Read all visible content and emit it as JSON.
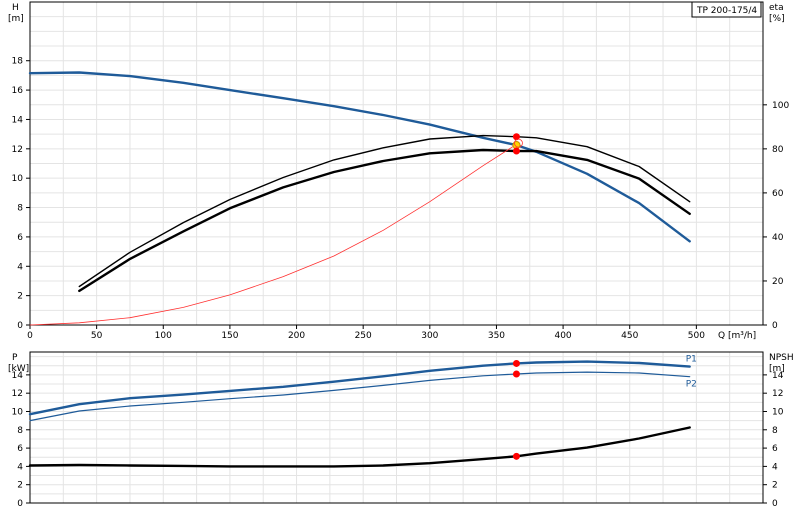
{
  "title": "TP 200-175/4",
  "chart_data": [
    {
      "type": "line",
      "name": "head-and-efficiency",
      "x_label": "Q [m³/h]",
      "xlim": [
        0,
        550
      ],
      "x_ticks": [
        0,
        50,
        100,
        150,
        200,
        250,
        300,
        350,
        400,
        450,
        500
      ],
      "y_left": {
        "label_top": "H",
        "label_unit": "[m]",
        "lim": [
          0,
          22
        ],
        "ticks": [
          0,
          2,
          4,
          6,
          8,
          10,
          12,
          14,
          16,
          18
        ]
      },
      "y_right": {
        "label_top": "eta",
        "label_unit": "[%]",
        "lim": [
          0,
          146.7
        ],
        "ticks": [
          0,
          20,
          40,
          60,
          80,
          100
        ]
      },
      "grid": true,
      "series": [
        {
          "axis": "left",
          "color": "#1f5b99",
          "width": 2.4,
          "x": [
            0,
            37,
            75,
            115,
            150,
            190,
            228,
            265,
            300,
            340,
            365,
            380,
            418,
            457,
            495
          ],
          "y": [
            17.15,
            17.2,
            16.95,
            16.5,
            16.0,
            15.45,
            14.9,
            14.3,
            13.65,
            12.75,
            12.25,
            11.8,
            10.3,
            8.3,
            5.7
          ]
        },
        {
          "axis": "right",
          "color": "#000000",
          "width": 1.4,
          "x": [
            37,
            75,
            115,
            150,
            190,
            228,
            265,
            300,
            340,
            365,
            380,
            418,
            457,
            495
          ],
          "y": [
            17.5,
            33,
            46.5,
            57,
            67,
            75,
            80.5,
            84.5,
            86,
            85.5,
            85,
            81,
            72,
            56
          ]
        },
        {
          "axis": "right",
          "color": "#000000",
          "width": 2.4,
          "x": [
            37,
            75,
            115,
            150,
            190,
            228,
            265,
            300,
            340,
            365,
            380,
            418,
            457,
            495
          ],
          "y": [
            15.5,
            30,
            42.5,
            53,
            62.5,
            69.5,
            74.5,
            78,
            79.5,
            79,
            79,
            75,
            66.5,
            50.5
          ]
        },
        {
          "axis": "left",
          "color": "#ff3030",
          "width": 0.8,
          "x": [
            0,
            37,
            75,
            115,
            150,
            190,
            228,
            265,
            300,
            340,
            365
          ],
          "y": [
            0,
            0.15,
            0.5,
            1.2,
            2.05,
            3.3,
            4.7,
            6.45,
            8.4,
            10.85,
            12.3
          ]
        }
      ],
      "markers": [
        {
          "axis": "left",
          "x": 365,
          "y": 12.25,
          "color": "#ffd400",
          "stroke": "#c88a00",
          "r": 3.6
        },
        {
          "axis": "right",
          "x": 365,
          "y": 85.5,
          "color": "#ff0000",
          "stroke": "#ff0000",
          "r": 3
        },
        {
          "axis": "right",
          "x": 365,
          "y": 79,
          "color": "#ff0000",
          "stroke": "#ff0000",
          "r": 3
        }
      ]
    },
    {
      "type": "line",
      "name": "power-and-npsh",
      "xlim": [
        0,
        550
      ],
      "y_left": {
        "label_top": "P",
        "label_unit": "[kW]",
        "lim": [
          0,
          16.5
        ],
        "ticks": [
          0,
          2,
          4,
          6,
          8,
          10,
          12,
          14
        ]
      },
      "y_right": {
        "label_top": "NPSH",
        "label_unit": "[m]",
        "lim": [
          0,
          16.5
        ],
        "ticks": [
          0,
          2,
          4,
          6,
          8,
          10,
          12,
          14
        ]
      },
      "grid": true,
      "series": [
        {
          "name": "P1",
          "axis": "left",
          "color": "#1f5b99",
          "width": 2.4,
          "x": [
            0,
            37,
            75,
            115,
            150,
            190,
            228,
            265,
            300,
            340,
            365,
            380,
            418,
            457,
            495
          ],
          "y": [
            9.7,
            10.8,
            11.45,
            11.85,
            12.25,
            12.7,
            13.25,
            13.85,
            14.45,
            15.0,
            15.25,
            15.35,
            15.45,
            15.3,
            14.9
          ]
        },
        {
          "name": "P2",
          "axis": "left",
          "color": "#1f5b99",
          "width": 1.2,
          "x": [
            0,
            37,
            75,
            115,
            150,
            190,
            228,
            265,
            300,
            340,
            365,
            380,
            418,
            457,
            495
          ],
          "y": [
            9.0,
            10.05,
            10.6,
            11.0,
            11.4,
            11.8,
            12.3,
            12.85,
            13.4,
            13.9,
            14.1,
            14.2,
            14.3,
            14.2,
            13.8
          ]
        },
        {
          "axis": "right",
          "color": "#000000",
          "width": 2.4,
          "x": [
            0,
            37,
            75,
            115,
            150,
            190,
            228,
            265,
            300,
            340,
            365,
            380,
            418,
            457,
            495
          ],
          "y": [
            4.1,
            4.15,
            4.1,
            4.05,
            4.0,
            4.0,
            4.0,
            4.1,
            4.35,
            4.8,
            5.1,
            5.4,
            6.05,
            7.05,
            8.25
          ]
        }
      ],
      "markers": [
        {
          "axis": "left",
          "x": 365,
          "y": 15.25,
          "color": "#ff0000",
          "stroke": "#ff0000",
          "r": 3
        },
        {
          "axis": "left",
          "x": 365,
          "y": 14.1,
          "color": "#ff0000",
          "stroke": "#ff0000",
          "r": 3
        },
        {
          "axis": "right",
          "x": 365,
          "y": 5.1,
          "color": "#ff0000",
          "stroke": "#ff0000",
          "r": 3
        }
      ]
    }
  ]
}
